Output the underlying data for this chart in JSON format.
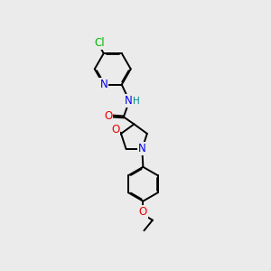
{
  "background_color": "#ebebeb",
  "bond_color": "#000000",
  "atom_colors": {
    "Cl": "#00bb00",
    "N": "#0000ee",
    "O": "#ee0000",
    "H": "#008888",
    "C": "#000000"
  },
  "line_width": 1.4,
  "font_size": 8.5
}
